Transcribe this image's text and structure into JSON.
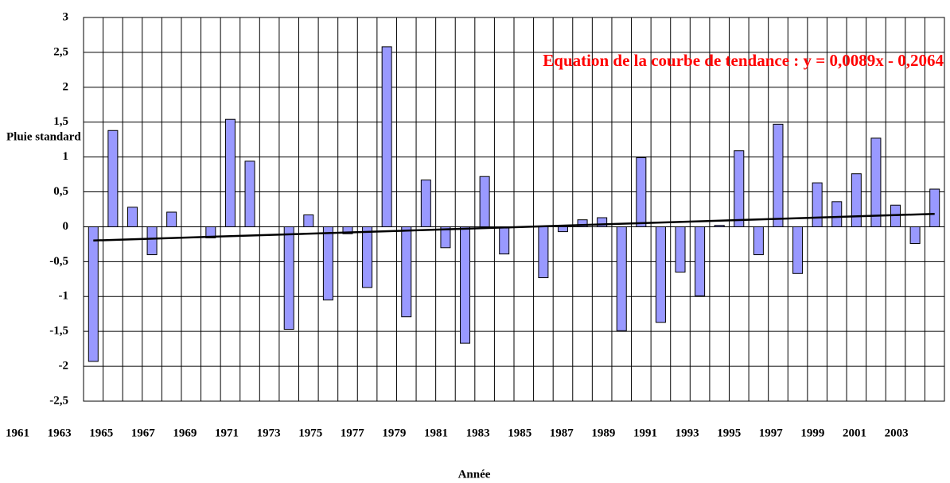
{
  "chart_data": {
    "type": "bar",
    "y_axis_label": "Pluie standard",
    "x_axis_label": "Année",
    "annotation": "Equation de la courbe de tendance :  y = 0,0089x - 0,2064",
    "categories": [
      "1961",
      null,
      "1963",
      null,
      "1965",
      null,
      "1967",
      null,
      "1969",
      null,
      "1971",
      null,
      "1973",
      null,
      "1975",
      null,
      "1977",
      null,
      "1979",
      null,
      "1981",
      null,
      "1983",
      null,
      "1985",
      null,
      "1987",
      null,
      "1989",
      null,
      "1991",
      null,
      "1993",
      null,
      "1995",
      null,
      "1997",
      null,
      "1999",
      null,
      "2001",
      null,
      "2003",
      null
    ],
    "values": [
      -1.93,
      1.38,
      0.28,
      -0.4,
      0.21,
      0,
      -0.16,
      1.54,
      0.94,
      0,
      -1.47,
      0.17,
      -1.05,
      -0.1,
      -0.87,
      2.58,
      -1.29,
      0.67,
      -0.3,
      -1.67,
      0.72,
      -0.39,
      0,
      -0.73,
      -0.07,
      0.1,
      0.13,
      -1.49,
      0.99,
      -1.37,
      -0.65,
      -0.99,
      0.02,
      1.09,
      -0.4,
      1.47,
      -0.67,
      0.63,
      0.36,
      0.76,
      1.27,
      0.31,
      -0.24,
      0.54
    ],
    "color": "#9999ff",
    "trend_line": {
      "values": [
        -0.197,
        0.185
      ],
      "color": "#000000"
    },
    "annotation_color": "#ff0000",
    "ylim": [
      -2.5,
      3
    ],
    "yticks": [
      {
        "value": -2.5,
        "label": "-2,5"
      },
      -2,
      {
        "value": -1.5,
        "label": "-1,5"
      },
      -1,
      {
        "value": -0.5,
        "label": "-0,5"
      },
      0,
      {
        "value": 0.5,
        "label": "0,5"
      },
      1,
      {
        "value": 1.5,
        "label": "1,5"
      },
      2,
      {
        "value": 2.5,
        "label": "2,5"
      },
      3
    ],
    "grid": true
  }
}
